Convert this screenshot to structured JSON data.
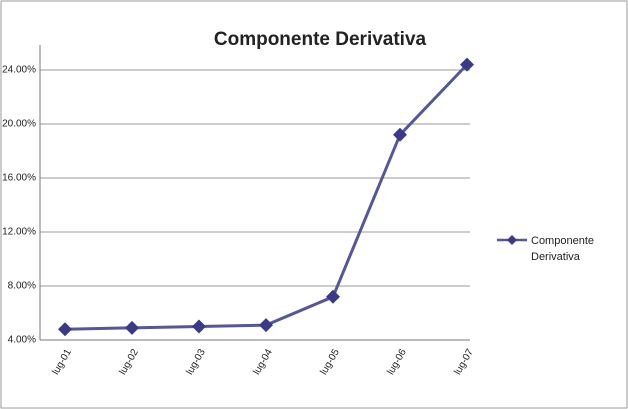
{
  "chart_data": {
    "type": "line",
    "title": "Componente Derivativa",
    "categories": [
      "lug-01",
      "lug-02",
      "lug-03",
      "lug-04",
      "lug-05",
      "lug-06",
      "lug-07"
    ],
    "series": [
      {
        "name": "Componente Derivativa",
        "color": "#56569a",
        "values": [
          4.8,
          4.9,
          5.0,
          5.1,
          7.2,
          19.2,
          24.4
        ]
      }
    ],
    "ylim": [
      4,
      24
    ],
    "yticks": [
      {
        "value": 4,
        "label": "4.00%"
      },
      {
        "value": 8,
        "label": "8.00%"
      },
      {
        "value": 12,
        "label": "12.00%"
      },
      {
        "value": 16,
        "label": "16.00%"
      },
      {
        "value": 20,
        "label": "20.00%"
      },
      {
        "value": 24,
        "label": "24.00%"
      }
    ],
    "grid": true,
    "legend": "right"
  }
}
